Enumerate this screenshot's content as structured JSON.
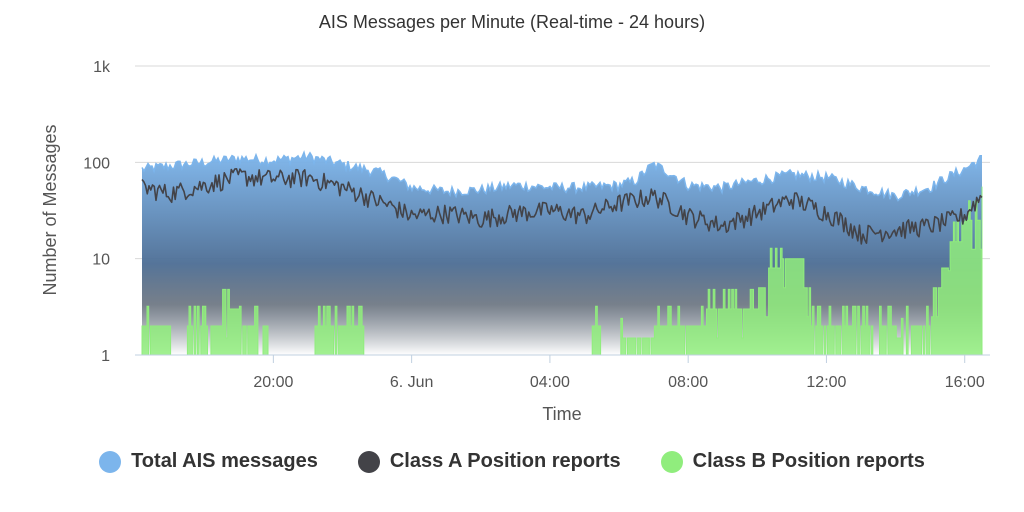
{
  "chart_data": {
    "type": "area",
    "title": "AIS Messages per Minute (Real-time - 24 hours)",
    "xlabel": "Time",
    "ylabel": "Number of Messages",
    "y_scale": "log",
    "ylim": [
      1,
      1000
    ],
    "y_ticks": [
      {
        "value": 1,
        "label": "1"
      },
      {
        "value": 10,
        "label": "10"
      },
      {
        "value": 100,
        "label": "100"
      },
      {
        "value": 1000,
        "label": "1k"
      }
    ],
    "x_ticks": [
      {
        "hour": 20,
        "label": "20:00"
      },
      {
        "hour": 24,
        "label": "6. Jun"
      },
      {
        "hour": 28,
        "label": "04:00"
      },
      {
        "hour": 32,
        "label": "08:00"
      },
      {
        "hour": 36,
        "label": "12:00"
      },
      {
        "hour": 40,
        "label": "16:00"
      }
    ],
    "x_range_hours": [
      16.2,
      40.5
    ],
    "grid": "horizontal",
    "legend_position": "bottom",
    "series": [
      {
        "name": "Total AIS messages",
        "style": "area",
        "color": "#7cb5ec",
        "x_hours": [
          16.2,
          17.0,
          18.0,
          19.0,
          20.0,
          21.0,
          22.0,
          23.0,
          24.0,
          25.0,
          26.0,
          27.0,
          28.0,
          29.0,
          30.0,
          30.5,
          31.0,
          32.0,
          33.0,
          34.0,
          35.0,
          36.0,
          37.0,
          38.0,
          39.0,
          40.0,
          40.5
        ],
        "values": [
          85,
          92,
          100,
          110,
          105,
          115,
          95,
          80,
          55,
          50,
          52,
          58,
          55,
          55,
          58,
          65,
          95,
          58,
          55,
          65,
          75,
          70,
          55,
          45,
          55,
          85,
          110
        ]
      },
      {
        "name": "Class A Position reports",
        "style": "line",
        "color": "#434348",
        "x_hours": [
          16.2,
          17.0,
          18.0,
          19.0,
          20.0,
          21.0,
          22.0,
          23.0,
          24.0,
          25.0,
          26.0,
          27.0,
          28.0,
          29.0,
          30.0,
          31.0,
          32.0,
          33.0,
          34.0,
          35.0,
          36.0,
          37.0,
          38.0,
          39.0,
          40.0,
          40.5
        ],
        "values": [
          55,
          48,
          58,
          72,
          68,
          70,
          55,
          40,
          28,
          30,
          26,
          30,
          32,
          28,
          38,
          45,
          28,
          22,
          30,
          42,
          30,
          18,
          20,
          22,
          28,
          45
        ]
      },
      {
        "name": "Class B Position reports",
        "style": "step",
        "color": "#90ed7d",
        "x_hours": [
          16.2,
          16.8,
          17.0,
          17.5,
          18.0,
          18.5,
          19.0,
          19.5,
          19.8,
          20.0,
          21.0,
          21.2,
          22.0,
          22.6,
          23.0,
          29.2,
          29.5,
          30.0,
          30.5,
          31.0,
          32.0,
          32.5,
          33.0,
          33.5,
          34.0,
          34.3,
          34.7,
          35.0,
          35.3,
          35.5,
          35.8,
          36.0,
          36.5,
          37.0,
          37.3,
          37.5,
          38.0,
          38.3,
          38.5,
          39.0,
          39.3,
          39.5,
          40.0,
          40.5
        ],
        "values": [
          2,
          2,
          1,
          2,
          2,
          3,
          2,
          2,
          1,
          1,
          1,
          2,
          2,
          1,
          1,
          2,
          1,
          1.5,
          1.5,
          2,
          2,
          3,
          3,
          3,
          5,
          8,
          10,
          10,
          5,
          2,
          2,
          2,
          2,
          2,
          1,
          2,
          1.5,
          2,
          2,
          5,
          8,
          15,
          25,
          35
        ]
      }
    ]
  }
}
